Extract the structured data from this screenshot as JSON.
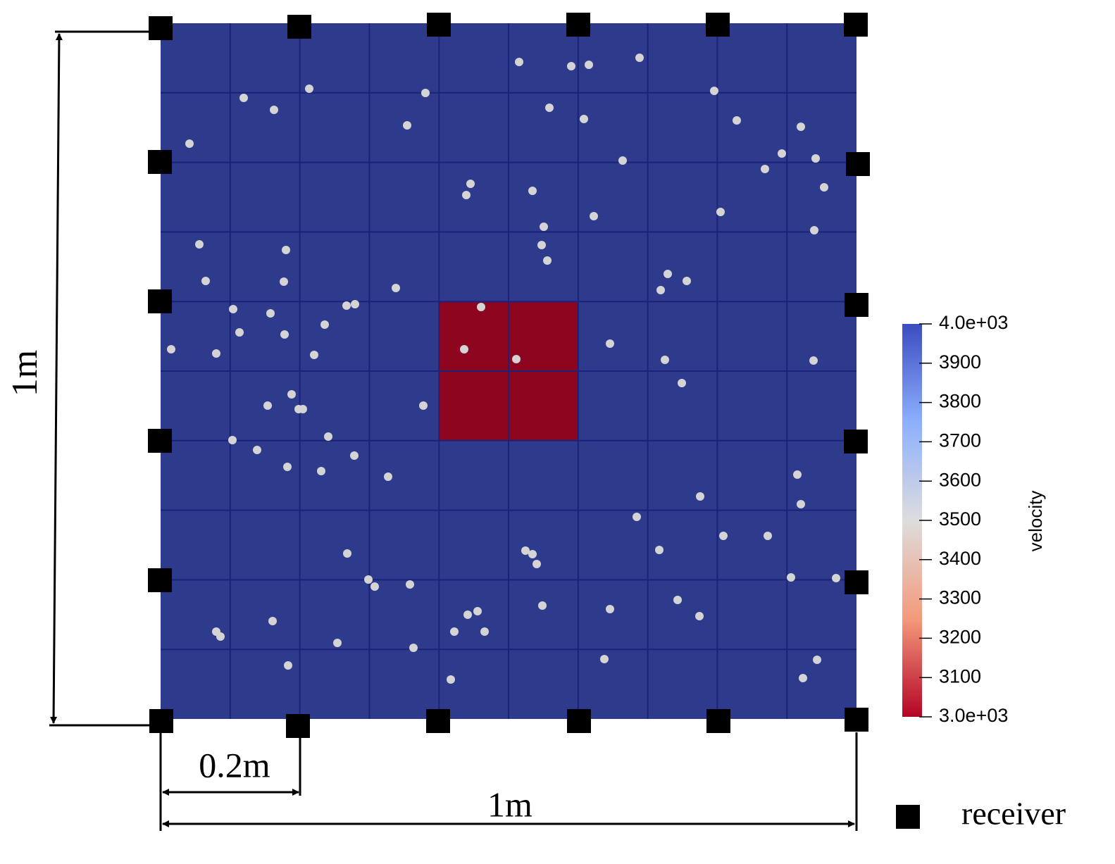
{
  "dimensions": {
    "height": "1m",
    "cell": "0.2m",
    "width": "1m"
  },
  "colorbar": {
    "title": "velocity",
    "range": [
      3000,
      4000
    ],
    "ticks": [
      {
        "value": 4000,
        "label": "4.0e+03"
      },
      3900,
      3800,
      3700,
      3600,
      3500,
      3400,
      3300,
      3200,
      3100,
      {
        "value": 3000,
        "label": "3.0e+03"
      }
    ]
  },
  "legend": {
    "label": "receiver"
  }
}
